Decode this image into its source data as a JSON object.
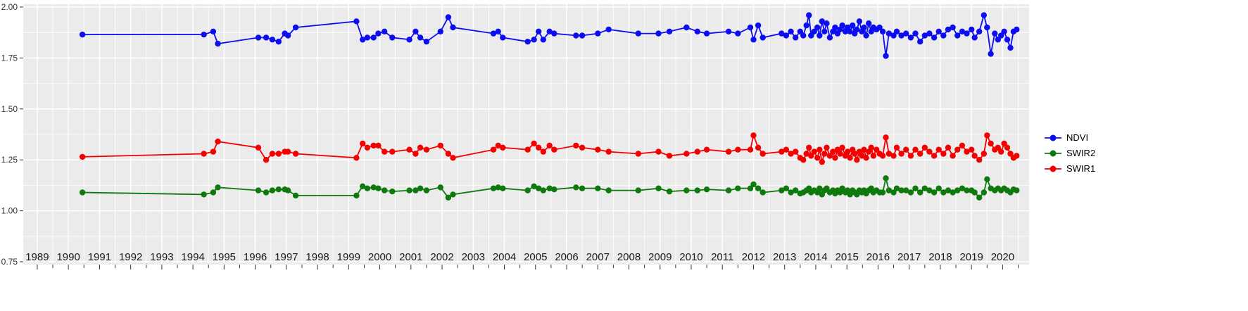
{
  "chart": {
    "background": "#ffffff",
    "panel_background": "#ebebeb",
    "grid_color": "#ffffff",
    "tick_color": "#333333"
  },
  "chart_data": {
    "type": "line",
    "title": "",
    "xlabel": "",
    "ylabel": "",
    "x_axis": {
      "tick_years": [
        "1989",
        "1990",
        "1991",
        "1992",
        "1993",
        "1994",
        "1995",
        "1996",
        "1997",
        "1998",
        "1999",
        "2000",
        "2001",
        "2002",
        "2003",
        "2004",
        "2005",
        "2006",
        "2007",
        "2008",
        "2009",
        "2010",
        "2011",
        "2012",
        "2013",
        "2014",
        "2015",
        "2016",
        "2017",
        "2018",
        "2019",
        "2020"
      ],
      "range": [
        1988.55,
        2020.85
      ]
    },
    "y_axis": {
      "tick_labels": [
        "2.00",
        "1.75",
        "1.50",
        "1.25",
        "1.00",
        "0.75"
      ],
      "tick_values": [
        2.0,
        1.75,
        1.5,
        1.25,
        1.0,
        0.75
      ],
      "range": [
        0.75,
        2.0
      ]
    },
    "x": [
      1990.45,
      1994.35,
      1994.65,
      1994.8,
      1996.1,
      1996.35,
      1996.55,
      1996.75,
      1996.95,
      1997.05,
      1997.3,
      1999.25,
      1999.45,
      1999.6,
      1999.8,
      1999.95,
      2000.15,
      2000.4,
      2000.95,
      2001.15,
      2001.3,
      2001.5,
      2001.95,
      2002.2,
      2002.35,
      2003.65,
      2003.8,
      2003.95,
      2004.75,
      2004.95,
      2005.1,
      2005.25,
      2005.45,
      2005.6,
      2006.3,
      2006.5,
      2007.0,
      2007.35,
      2008.3,
      2008.95,
      2009.3,
      2009.85,
      2010.2,
      2010.5,
      2011.2,
      2011.5,
      2011.9,
      2012.0,
      2012.15,
      2012.3,
      2012.9,
      2013.05,
      2013.2,
      2013.35,
      2013.5,
      2013.6,
      2013.7,
      2013.78,
      2013.85,
      2013.95,
      2014.05,
      2014.12,
      2014.2,
      2014.28,
      2014.35,
      2014.45,
      2014.55,
      2014.62,
      2014.7,
      2014.78,
      2014.85,
      2014.95,
      2015.02,
      2015.1,
      2015.18,
      2015.25,
      2015.32,
      2015.4,
      2015.48,
      2015.55,
      2015.62,
      2015.7,
      2015.78,
      2015.85,
      2015.95,
      2016.05,
      2016.15,
      2016.25,
      2016.35,
      2016.5,
      2016.6,
      2016.75,
      2016.9,
      2017.05,
      2017.2,
      2017.35,
      2017.5,
      2017.65,
      2017.8,
      2017.95,
      2018.1,
      2018.25,
      2018.4,
      2018.55,
      2018.7,
      2018.85,
      2019.0,
      2019.1,
      2019.25,
      2019.4,
      2019.5,
      2019.62,
      2019.75,
      2019.85,
      2019.95,
      2020.05,
      2020.15,
      2020.25,
      2020.35,
      2020.45
    ],
    "series": [
      {
        "name": "NDVI",
        "color": "#0d0df2",
        "values": [
          1.865,
          1.865,
          1.88,
          1.82,
          1.85,
          1.85,
          1.84,
          1.83,
          1.87,
          1.86,
          1.9,
          1.93,
          1.84,
          1.85,
          1.85,
          1.87,
          1.88,
          1.85,
          1.84,
          1.88,
          1.85,
          1.83,
          1.88,
          1.95,
          1.9,
          1.87,
          1.88,
          1.85,
          1.83,
          1.84,
          1.88,
          1.84,
          1.88,
          1.87,
          1.86,
          1.86,
          1.87,
          1.89,
          1.87,
          1.87,
          1.88,
          1.9,
          1.88,
          1.87,
          1.88,
          1.87,
          1.9,
          1.84,
          1.91,
          1.85,
          1.87,
          1.86,
          1.88,
          1.85,
          1.88,
          1.86,
          1.91,
          1.96,
          1.86,
          1.88,
          1.9,
          1.86,
          1.93,
          1.88,
          1.92,
          1.85,
          1.88,
          1.9,
          1.87,
          1.89,
          1.91,
          1.88,
          1.9,
          1.88,
          1.91,
          1.87,
          1.89,
          1.93,
          1.88,
          1.9,
          1.86,
          1.92,
          1.88,
          1.9,
          1.89,
          1.9,
          1.88,
          1.76,
          1.87,
          1.86,
          1.88,
          1.86,
          1.87,
          1.85,
          1.87,
          1.83,
          1.86,
          1.87,
          1.85,
          1.88,
          1.86,
          1.89,
          1.9,
          1.86,
          1.88,
          1.87,
          1.89,
          1.85,
          1.88,
          1.96,
          1.9,
          1.77,
          1.87,
          1.84,
          1.86,
          1.88,
          1.84,
          1.8,
          1.88,
          1.89
        ]
      },
      {
        "name": "SWIR2",
        "color": "#0e7a0e",
        "values": [
          1.09,
          1.08,
          1.09,
          1.115,
          1.1,
          1.09,
          1.1,
          1.105,
          1.105,
          1.1,
          1.075,
          1.075,
          1.12,
          1.11,
          1.115,
          1.11,
          1.1,
          1.095,
          1.1,
          1.1,
          1.11,
          1.1,
          1.115,
          1.065,
          1.08,
          1.11,
          1.115,
          1.11,
          1.1,
          1.12,
          1.11,
          1.1,
          1.11,
          1.105,
          1.115,
          1.11,
          1.11,
          1.1,
          1.1,
          1.11,
          1.095,
          1.1,
          1.1,
          1.105,
          1.1,
          1.11,
          1.11,
          1.13,
          1.11,
          1.09,
          1.1,
          1.11,
          1.09,
          1.1,
          1.085,
          1.09,
          1.1,
          1.11,
          1.09,
          1.1,
          1.09,
          1.11,
          1.08,
          1.1,
          1.11,
          1.09,
          1.1,
          1.085,
          1.1,
          1.09,
          1.11,
          1.09,
          1.1,
          1.08,
          1.1,
          1.09,
          1.08,
          1.1,
          1.09,
          1.1,
          1.085,
          1.1,
          1.11,
          1.09,
          1.1,
          1.09,
          1.09,
          1.16,
          1.1,
          1.09,
          1.11,
          1.1,
          1.1,
          1.09,
          1.11,
          1.09,
          1.11,
          1.1,
          1.09,
          1.11,
          1.09,
          1.1,
          1.09,
          1.1,
          1.11,
          1.1,
          1.1,
          1.09,
          1.065,
          1.09,
          1.155,
          1.11,
          1.1,
          1.11,
          1.1,
          1.11,
          1.1,
          1.09,
          1.105,
          1.1
        ]
      },
      {
        "name": "SWIR1",
        "color": "#f50000",
        "values": [
          1.265,
          1.28,
          1.29,
          1.34,
          1.31,
          1.25,
          1.28,
          1.28,
          1.29,
          1.29,
          1.28,
          1.26,
          1.33,
          1.31,
          1.32,
          1.32,
          1.29,
          1.29,
          1.3,
          1.28,
          1.31,
          1.3,
          1.32,
          1.28,
          1.26,
          1.3,
          1.32,
          1.31,
          1.3,
          1.33,
          1.31,
          1.29,
          1.32,
          1.3,
          1.32,
          1.31,
          1.3,
          1.29,
          1.28,
          1.29,
          1.27,
          1.28,
          1.29,
          1.3,
          1.29,
          1.3,
          1.3,
          1.37,
          1.31,
          1.28,
          1.29,
          1.3,
          1.28,
          1.29,
          1.26,
          1.25,
          1.28,
          1.31,
          1.27,
          1.29,
          1.26,
          1.3,
          1.24,
          1.28,
          1.31,
          1.27,
          1.29,
          1.26,
          1.3,
          1.28,
          1.31,
          1.27,
          1.29,
          1.26,
          1.3,
          1.28,
          1.25,
          1.29,
          1.27,
          1.3,
          1.26,
          1.29,
          1.31,
          1.27,
          1.3,
          1.28,
          1.27,
          1.36,
          1.28,
          1.27,
          1.31,
          1.28,
          1.3,
          1.27,
          1.3,
          1.28,
          1.31,
          1.29,
          1.27,
          1.3,
          1.28,
          1.31,
          1.27,
          1.3,
          1.32,
          1.29,
          1.3,
          1.27,
          1.25,
          1.28,
          1.37,
          1.33,
          1.3,
          1.31,
          1.29,
          1.33,
          1.31,
          1.28,
          1.26,
          1.27
        ]
      }
    ],
    "legend": {
      "position": "right",
      "entries": [
        {
          "label": "NDVI",
          "color": "#0d0df2"
        },
        {
          "label": "SWIR2",
          "color": "#0e7a0e"
        },
        {
          "label": "SWIR1",
          "color": "#f50000"
        }
      ]
    }
  }
}
